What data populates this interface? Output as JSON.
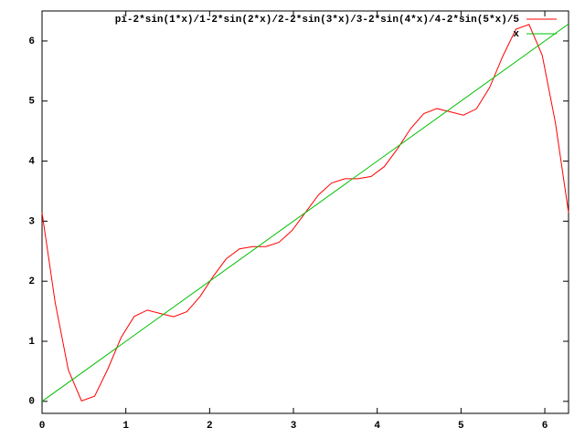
{
  "chart_data": {
    "type": "line",
    "x": [
      0,
      0.1571,
      0.3142,
      0.4712,
      0.6283,
      0.7854,
      0.9425,
      1.0996,
      1.2566,
      1.4137,
      1.5708,
      1.7279,
      1.885,
      2.042,
      2.1991,
      2.3562,
      2.5133,
      2.6704,
      2.8274,
      2.9845,
      3.1416,
      3.2987,
      3.4558,
      3.6128,
      3.7699,
      3.927,
      4.0841,
      4.2412,
      4.3982,
      4.5553,
      4.7124,
      4.8695,
      5.0265,
      5.1836,
      5.3407,
      5.4978,
      5.6549,
      5.8119,
      5.969,
      6.1261,
      6.2832
    ],
    "series": [
      {
        "name": "pi-2*sin(1*x)/1-2*sin(2*x)/2-2*sin(3*x)/3-2*sin(4*x)/4-2*sin(5*x)/5",
        "color": "#ff0000",
        "values": [
          3.1416,
          1.6406,
          0.5208,
          0.0078,
          0.0872,
          0.5388,
          1.0604,
          1.4132,
          1.519,
          1.4622,
          1.4082,
          1.4926,
          1.7434,
          2.08,
          2.3748,
          2.5388,
          2.5768,
          2.577,
          2.6476,
          2.8462,
          3.1416,
          3.437,
          3.6356,
          3.7062,
          3.7064,
          3.7444,
          3.9084,
          4.2032,
          4.5398,
          4.7906,
          4.875,
          4.821,
          4.7642,
          4.87,
          5.2228,
          5.7444,
          6.196,
          6.2754,
          5.7624,
          4.6426,
          3.1416
        ]
      },
      {
        "name": "x",
        "color": "#00c000",
        "x": [
          0,
          6.2832
        ],
        "values": [
          0,
          6.2832
        ]
      }
    ],
    "xlim": [
      0,
      6.2832
    ],
    "ylim": [
      -0.2,
      6.5
    ],
    "xticks": [
      0,
      1,
      2,
      3,
      4,
      5,
      6
    ],
    "yticks": [
      0,
      1,
      2,
      3,
      4,
      5,
      6
    ],
    "legend": "top-right"
  }
}
